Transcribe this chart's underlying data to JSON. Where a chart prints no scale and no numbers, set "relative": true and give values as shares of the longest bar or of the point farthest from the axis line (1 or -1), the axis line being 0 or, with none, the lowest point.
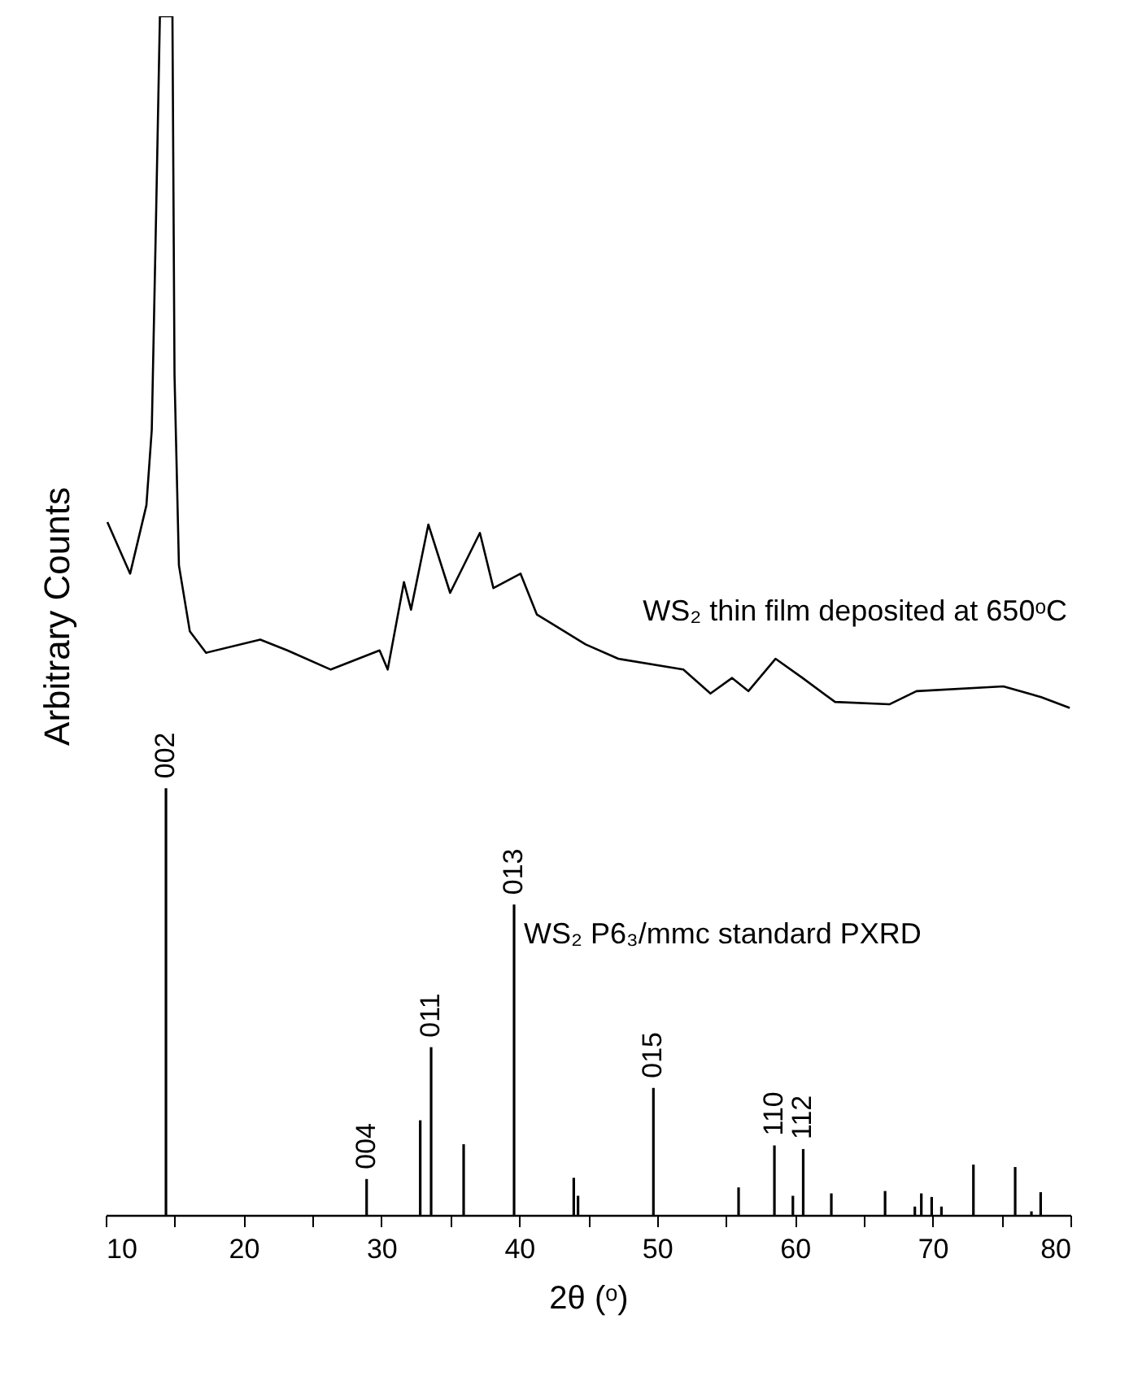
{
  "chart_data": {
    "type": "line",
    "xlabel": "2θ (ᵒ)",
    "ylabel": "Arbitrary Counts",
    "relative": true,
    "tick_labels": "x",
    "legend": false,
    "xlim": [
      10,
      80
    ],
    "xticks": [
      10,
      {
        "value": 15,
        "label": null
      },
      20,
      {
        "value": 25,
        "label": null
      },
      30,
      {
        "value": 35,
        "label": null
      },
      40,
      {
        "value": 45,
        "label": null
      },
      50,
      {
        "value": 55,
        "label": null
      },
      60,
      {
        "value": 65,
        "label": null
      },
      70,
      {
        "value": 75,
        "label": null
      },
      80
    ],
    "series": [
      {
        "name": "WS₂ thin film deposited at 650ᵒC",
        "color": "#000000",
        "x": [
          10.12,
          11.77,
          12.95,
          13.34,
          13.66,
          13.93,
          14.84,
          14.99,
          15.31,
          16.1,
          17.28,
          21.21,
          23.18,
          26.33,
          29.87,
          30.46,
          31.64,
          32.15,
          33.41,
          34.99,
          37.15,
          38.13,
          40.1,
          41.28,
          44.82,
          47.19,
          51.91,
          53.88,
          55.45,
          56.63,
          58.6,
          60.56,
          62.92,
          66.86,
          68.83,
          75.13,
          77.88,
          79.95
        ],
        "values": [
          0.578,
          0.535,
          0.592,
          0.655,
          0.838,
          1,
          1,
          0.701,
          0.542,
          0.487,
          0.469,
          0.48,
          0.471,
          0.455,
          0.471,
          0.455,
          0.528,
          0.505,
          0.576,
          0.519,
          0.569,
          0.523,
          0.535,
          0.501,
          0.476,
          0.464,
          0.455,
          0.435,
          0.448,
          0.437,
          0.464,
          0.448,
          0.428,
          0.426,
          0.437,
          0.441,
          0.432,
          0.423
        ]
      },
      {
        "name": "WS₂ P6₃/mmc standard PXRD",
        "type": "bar",
        "color": "#000000",
        "x": [
          14.37,
          28.93,
          32.82,
          33.61,
          35.97,
          39.63,
          43.96,
          44.27,
          49.74,
          55.92,
          58.52,
          59.86,
          60.61,
          62.65,
          66.55,
          68.71,
          69.18,
          69.93,
          70.64,
          72.96,
          75.99,
          77.17,
          77.84
        ],
        "values": [
          0.356,
          0.03,
          0.079,
          0.14,
          0.059,
          0.259,
          0.031,
          0.016,
          0.106,
          0.023,
          0.058,
          0.016,
          0.055,
          0.018,
          0.02,
          0.007,
          0.018,
          0.015,
          0.007,
          0.042,
          0.04,
          0.003,
          0.019
        ]
      }
    ],
    "annotations": [
      {
        "text": "002",
        "x": 14.37,
        "y": 0.356
      },
      {
        "text": "004",
        "x": 28.93,
        "y": 0.03
      },
      {
        "text": "011",
        "x": 33.61,
        "y": 0.14
      },
      {
        "text": "013",
        "x": 39.63,
        "y": 0.259
      },
      {
        "text": "015",
        "x": 49.74,
        "y": 0.106
      },
      {
        "text": "110",
        "x": 58.52,
        "y": 0.058
      },
      {
        "text": "112",
        "x": 60.61,
        "y": 0.055
      }
    ]
  }
}
